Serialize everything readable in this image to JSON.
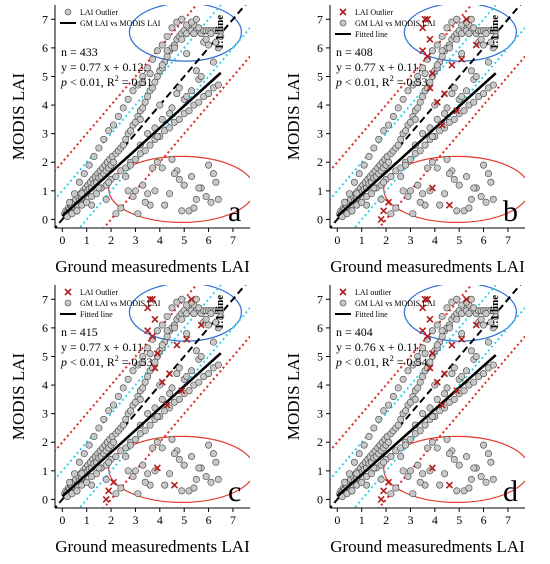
{
  "chart_data": [
    {
      "type": "scatter",
      "panel_letter": "a",
      "xlabel": "Ground measuredments LAI",
      "ylabel": "MODIS LAI",
      "xlim": [
        -0.3,
        7.7
      ],
      "ylim": [
        -0.3,
        7.5
      ],
      "xticks": [
        0,
        1,
        2,
        3,
        4,
        5,
        6,
        7
      ],
      "yticks": [
        0,
        1,
        2,
        3,
        4,
        5,
        6,
        7
      ],
      "legend": [
        {
          "label": "LAI Outlier",
          "marker": "circle"
        },
        {
          "label": "GM LAI vs MODIS LAI",
          "marker": "line"
        }
      ],
      "one_to_one_label": "1:1 line",
      "stats": {
        "n": "n = 433",
        "equation": "y = 0.77 x + 0.12,",
        "p_prefix": "p",
        "p_rest": " < 0.01, R",
        "r2_exp": "2",
        "r2_val": " = 0.51"
      },
      "fit": {
        "slope": 0.77,
        "intercept": 0.12
      },
      "has_outliers": false
    },
    {
      "type": "scatter",
      "panel_letter": "b",
      "xlabel": "Ground measuredments LAI",
      "ylabel": "MODIS LAI",
      "xlim": [
        -0.3,
        7.7
      ],
      "ylim": [
        -0.3,
        7.5
      ],
      "xticks": [
        0,
        1,
        2,
        3,
        4,
        5,
        6,
        7
      ],
      "yticks": [
        0,
        1,
        2,
        3,
        4,
        5,
        6,
        7
      ],
      "legend": [
        {
          "label": "LAI Outlier",
          "marker": "x"
        },
        {
          "label": "GM LAI vs MODIS LAI",
          "marker": "circle"
        },
        {
          "label": "Fitted line",
          "marker": "line"
        }
      ],
      "one_to_one_label": "1:1 line",
      "stats": {
        "n": "n = 408",
        "equation": "y = 0.77 x + 0.11,",
        "p_prefix": "p",
        "p_rest": " < 0.01, R",
        "r2_exp": "2",
        "r2_val": " = 0.53"
      },
      "fit": {
        "slope": 0.77,
        "intercept": 0.11
      },
      "has_outliers": true
    },
    {
      "type": "scatter",
      "panel_letter": "c",
      "xlabel": "Ground measuredments LAI",
      "ylabel": "MODIS LAI",
      "xlim": [
        -0.3,
        7.7
      ],
      "ylim": [
        -0.3,
        7.5
      ],
      "xticks": [
        0,
        1,
        2,
        3,
        4,
        5,
        6,
        7
      ],
      "yticks": [
        0,
        1,
        2,
        3,
        4,
        5,
        6,
        7
      ],
      "legend": [
        {
          "label": "LAI Outlier",
          "marker": "x"
        },
        {
          "label": "GM LAI vs MODIS LAI",
          "marker": "circle"
        },
        {
          "label": "Fitted line",
          "marker": "line"
        }
      ],
      "one_to_one_label": "1:1 line",
      "stats": {
        "n": "n = 415",
        "equation": "y = 0.77 x + 0.11,",
        "p_prefix": "p",
        "p_rest": " < 0.01, R",
        "r2_exp": "2",
        "r2_val": " = 0.53"
      },
      "fit": {
        "slope": 0.77,
        "intercept": 0.11
      },
      "has_outliers": true
    },
    {
      "type": "scatter",
      "panel_letter": "d",
      "xlabel": "Ground measuredments LAI",
      "ylabel": "MODIS LAI",
      "xlim": [
        -0.3,
        7.7
      ],
      "ylim": [
        -0.3,
        7.5
      ],
      "xticks": [
        0,
        1,
        2,
        3,
        4,
        5,
        6,
        7
      ],
      "yticks": [
        0,
        1,
        2,
        3,
        4,
        5,
        6,
        7
      ],
      "legend": [
        {
          "label": "LAI outlier",
          "marker": "x"
        },
        {
          "label": "GM LAI vs MODIS LAI",
          "marker": "circle"
        },
        {
          "label": "Fitted line",
          "marker": "line"
        }
      ],
      "one_to_one_label": "1:1 line",
      "stats": {
        "n": "n = 404",
        "equation": "y = 0.76 x + 0.11,",
        "p_prefix": "p",
        "p_rest": " < 0.01, R",
        "r2_exp": "2",
        "r2_val": " = 0.54"
      },
      "fit": {
        "slope": 0.76,
        "intercept": 0.11
      },
      "has_outliers": true
    }
  ],
  "shared_points": {
    "x": [
      0.1,
      0.15,
      0.2,
      0.25,
      0.3,
      0.35,
      0.4,
      0.45,
      0.5,
      0.55,
      0.6,
      0.65,
      0.7,
      0.75,
      0.8,
      0.85,
      0.9,
      0.95,
      1.0,
      1.05,
      1.1,
      1.15,
      1.2,
      1.25,
      1.3,
      1.35,
      1.4,
      1.45,
      1.5,
      1.55,
      1.6,
      1.65,
      1.7,
      1.75,
      1.8,
      1.85,
      1.9,
      1.95,
      2.0,
      2.05,
      2.1,
      2.2,
      2.3,
      2.4,
      2.5,
      2.6,
      2.7,
      2.8,
      2.9,
      3.0,
      3.1,
      3.2,
      3.3,
      3.4,
      3.5,
      3.6,
      3.7,
      3.8,
      3.9,
      4.0,
      4.1,
      4.2,
      4.3,
      4.4,
      4.5,
      4.6,
      4.7,
      4.8,
      4.9,
      5.0,
      5.1,
      5.2,
      5.3,
      5.4,
      5.5,
      5.6,
      5.7,
      5.8,
      5.9,
      6.0,
      6.1,
      6.2,
      6.3,
      6.4,
      6.5,
      0.3,
      0.5,
      0.7,
      0.9,
      1.1,
      1.3,
      1.5,
      1.7,
      1.9,
      2.1,
      2.3,
      2.5,
      2.7,
      2.9,
      3.1,
      3.3,
      3.5,
      3.7,
      3.9,
      4.1,
      4.3,
      4.5,
      4.7,
      4.9,
      5.1,
      5.3,
      5.5,
      0.2,
      0.4,
      0.6,
      0.8,
      1.0,
      1.2,
      1.4,
      1.6,
      1.8,
      2.0,
      2.2,
      2.4,
      2.6,
      2.8,
      3.0,
      3.2,
      3.4,
      3.6,
      3.8,
      4.0,
      4.2,
      4.4,
      4.6,
      4.8,
      5.0,
      5.2,
      5.4,
      5.6,
      5.8,
      6.0,
      6.2,
      6.4,
      2.6,
      2.9,
      3.3,
      3.6,
      4.1,
      4.4,
      4.8,
      5.2,
      5.7,
      6.1,
      3.9,
      4.7,
      5.5,
      6.3,
      3.1,
      3.8,
      4.6,
      5.4,
      6.0,
      3.5,
      4.2,
      5.0,
      5.9,
      2.8,
      3.4,
      4.5,
      5.3,
      6.4,
      3.0,
      3.7,
      4.9,
      5.6,
      6.2,
      0.6,
      1.2,
      1.8,
      2.2,
      0.8,
      1.5,
      2.4,
      1.0,
      1.9,
      2.7,
      3.2,
      4.0,
      4.8,
      5.5,
      3.3,
      4.1,
      4.6,
      5.1,
      5.8,
      3.6,
      4.3,
      4.9,
      5.4,
      6.0,
      6.5,
      6.3,
      6.1,
      5.9,
      3.2,
      3.8,
      4.4,
      5.0,
      5.6,
      3.5,
      4.1,
      4.7,
      5.3,
      3.9,
      4.5,
      5.1,
      5.7,
      6.2,
      6.4
    ],
    "y": [
      0.2,
      0.3,
      0.25,
      0.4,
      0.35,
      0.5,
      0.45,
      0.6,
      0.55,
      0.7,
      0.5,
      0.8,
      0.65,
      0.9,
      0.75,
      1.0,
      0.85,
      1.1,
      0.95,
      1.2,
      1.05,
      1.3,
      1.1,
      1.4,
      1.25,
      1.5,
      1.3,
      1.6,
      1.45,
      1.7,
      1.5,
      1.8,
      1.6,
      1.9,
      1.7,
      2.0,
      1.8,
      2.1,
      1.9,
      2.2,
      2.0,
      2.3,
      2.4,
      2.5,
      2.6,
      2.8,
      3.0,
      3.1,
      3.3,
      3.4,
      3.6,
      3.8,
      3.9,
      4.1,
      4.3,
      4.5,
      4.6,
      4.8,
      5.0,
      5.2,
      5.3,
      5.5,
      5.7,
      5.9,
      6.0,
      6.1,
      6.3,
      6.4,
      6.5,
      6.6,
      6.5,
      6.7,
      6.6,
      6.8,
      6.6,
      6.7,
      6.5,
      6.6,
      6.6,
      6.6,
      6.6,
      6.6,
      6.6,
      6.6,
      6.6,
      0.6,
      0.9,
      1.3,
      1.6,
      1.9,
      2.2,
      2.5,
      2.8,
      3.1,
      3.3,
      3.6,
      3.9,
      4.2,
      4.5,
      4.7,
      5.0,
      5.3,
      5.6,
      5.9,
      6.1,
      6.4,
      6.7,
      6.9,
      7.0,
      6.8,
      6.9,
      7.0,
      0.1,
      0.2,
      0.3,
      0.5,
      0.6,
      0.8,
      0.9,
      1.1,
      1.2,
      1.4,
      1.5,
      1.7,
      1.8,
      2.0,
      2.1,
      2.3,
      2.4,
      2.6,
      2.8,
      2.9,
      3.1,
      3.2,
      3.4,
      3.5,
      3.7,
      3.8,
      4.0,
      4.1,
      4.3,
      4.4,
      4.6,
      4.7,
      1.5,
      0.8,
      1.2,
      0.5,
      1.8,
      0.9,
      1.4,
      0.3,
      1.1,
      0.6,
      2.0,
      1.7,
      0.7,
      1.3,
      0.2,
      1.0,
      1.6,
      0.4,
      1.9,
      0.9,
      0.5,
      1.2,
      0.8,
      1.9,
      0.6,
      2.1,
      1.5,
      0.7,
      1.0,
      1.8,
      0.3,
      1.1,
      1.6,
      0.3,
      0.5,
      0.7,
      0.2,
      0.9,
      1.1,
      0.4,
      0.6,
      1.3,
      1.0,
      3.5,
      4.0,
      4.6,
      5.2,
      4.8,
      5.4,
      6.0,
      5.8,
      6.2,
      5.1,
      5.9,
      6.3,
      6.5,
      6.1,
      6.4,
      6.2,
      6.5,
      6.3,
      2.6,
      3.2,
      3.7,
      4.2,
      4.9,
      3.0,
      3.5,
      4.4,
      4.5,
      2.9,
      3.9,
      4.3,
      5.0,
      5.5,
      6.0
    ],
    "outliers_x": [
      3.6,
      3.7,
      3.8,
      3.5,
      3.7,
      3.5,
      3.9,
      4.4,
      5.3,
      5.7,
      5.1,
      4.7,
      3.8,
      4.1,
      4.9,
      4.3,
      1.8,
      1.9,
      2.1,
      3.9,
      4.6
    ],
    "outliers_y": [
      7.0,
      7.0,
      6.3,
      5.9,
      5.7,
      6.7,
      5.1,
      4.4,
      7.0,
      6.1,
      5.6,
      5.4,
      4.6,
      4.1,
      3.8,
      3.3,
      0.0,
      0.3,
      0.6,
      1.1,
      0.5
    ]
  }
}
